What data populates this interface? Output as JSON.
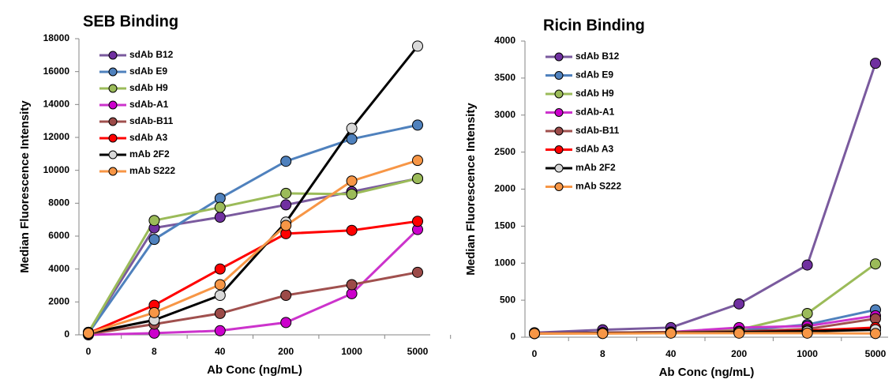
{
  "chart_data": [
    {
      "type": "line",
      "title": "SEB Binding",
      "x_label": "Ab Conc (ng/mL)",
      "y_label": "Median Fluorescence Intensity",
      "categories": [
        "0",
        "8",
        "40",
        "200",
        "1000",
        "5000"
      ],
      "ylim": [
        0,
        18000
      ],
      "yticks": [
        0,
        2000,
        4000,
        6000,
        8000,
        10000,
        12000,
        14000,
        16000,
        18000
      ],
      "legend": "top-left",
      "series": [
        {
          "name": "sdAb B12",
          "color": "#7a5a9e",
          "marker_color": "#7030a0",
          "values": [
            150,
            6500,
            7150,
            7900,
            8700,
            9500
          ]
        },
        {
          "name": "sdAb E9",
          "color": "#4f81bd",
          "marker_color": "#4f81bd",
          "values": [
            100,
            5800,
            8300,
            10550,
            11900,
            12750
          ]
        },
        {
          "name": "sdAb H9",
          "color": "#9bbb59",
          "marker_color": "#9bbb59",
          "values": [
            150,
            6950,
            7750,
            8600,
            8550,
            9500
          ]
        },
        {
          "name": "sdAb-A1",
          "color": "#cc33cc",
          "marker_color": "#cc00cc",
          "values": [
            0,
            100,
            250,
            750,
            2500,
            6400
          ]
        },
        {
          "name": "sdAb-B11",
          "color": "#a0504e",
          "marker_color": "#9c4a48",
          "values": [
            50,
            650,
            1300,
            2400,
            3050,
            3800
          ]
        },
        {
          "name": "sdAb A3",
          "color": "#ff0000",
          "marker_color": "#ff0000",
          "values": [
            100,
            1800,
            4000,
            6150,
            6350,
            6900
          ]
        },
        {
          "name": "mAb 2F2",
          "color": "#000000",
          "marker_color": "#d9d9d9",
          "values": [
            100,
            900,
            2400,
            6850,
            12550,
            17550
          ]
        },
        {
          "name": "mAb S222",
          "color": "#f79646",
          "marker_color": "#f79646",
          "values": [
            100,
            1350,
            3050,
            6650,
            9350,
            10600
          ]
        }
      ]
    },
    {
      "type": "line",
      "title": "Ricin Binding",
      "x_label": "Ab Conc (ng/mL)",
      "y_label": "Median Fluorescence Intensity",
      "categories": [
        "0",
        "8",
        "40",
        "200",
        "1000",
        "5000"
      ],
      "ylim": [
        0,
        4000
      ],
      "yticks": [
        0,
        500,
        1000,
        1500,
        2000,
        2500,
        3000,
        3500,
        4000
      ],
      "legend": "top-left",
      "series": [
        {
          "name": "sdAb B12",
          "color": "#7a5a9e",
          "marker_color": "#7030a0",
          "values": [
            60,
            100,
            130,
            450,
            975,
            3700
          ]
        },
        {
          "name": "sdAb E9",
          "color": "#4f81bd",
          "marker_color": "#4f81bd",
          "values": [
            50,
            60,
            70,
            90,
            170,
            370
          ]
        },
        {
          "name": "sdAb H9",
          "color": "#9bbb59",
          "marker_color": "#9bbb59",
          "values": [
            50,
            60,
            70,
            100,
            320,
            990
          ]
        },
        {
          "name": "sdAb-A1",
          "color": "#cc33cc",
          "marker_color": "#cc00cc",
          "values": [
            50,
            60,
            70,
            130,
            150,
            290
          ]
        },
        {
          "name": "sdAb-B11",
          "color": "#a0504e",
          "marker_color": "#9c4a48",
          "values": [
            50,
            60,
            70,
            80,
            110,
            250
          ]
        },
        {
          "name": "sdAb A3",
          "color": "#ff0000",
          "marker_color": "#ff0000",
          "values": [
            50,
            55,
            60,
            70,
            90,
            130
          ]
        },
        {
          "name": "mAb 2F2",
          "color": "#000000",
          "marker_color": "#d9d9d9",
          "values": [
            50,
            55,
            60,
            70,
            80,
            100
          ]
        },
        {
          "name": "mAb S222",
          "color": "#f79646",
          "marker_color": "#f79646",
          "values": [
            50,
            50,
            55,
            55,
            55,
            50
          ]
        }
      ]
    }
  ]
}
